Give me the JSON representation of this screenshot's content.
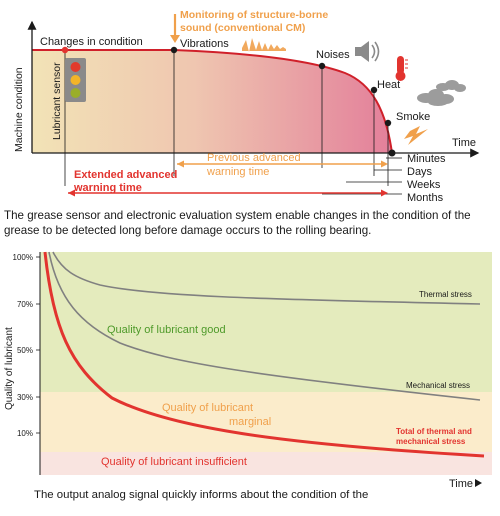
{
  "top_diagram": {
    "y_axis_label": "Machine condition",
    "x_axis_label": "Time",
    "changes_in_condition": "Changes in condition",
    "lubricant_sensor": "Lubricant sensor",
    "monitoring_line1": "Monitoring of structure-borne",
    "monitoring_line2": "sound (conventional CM)",
    "vibrations": "Vibrations",
    "noises": "Noises",
    "heat": "Heat",
    "smoke": "Smoke",
    "time_units": [
      "Minutes",
      "Days",
      "Weeks",
      "Months"
    ],
    "previous_line1": "Previous advanced",
    "previous_line2": "warning time",
    "extended_line1": "Extended advanced",
    "extended_line2": "warning time",
    "colors": {
      "red": "#e2342f",
      "orange": "#f0a04b",
      "curve": "#d0202a"
    }
  },
  "caption_top": "The grease sensor and electronic evaluation system enable changes in the condition of the grease to be detected long before damage occurs to the rolling bearing.",
  "bottom_chart": {
    "y_axis_label": "Quality of lubricant",
    "x_axis_label": "Time",
    "y_ticks": [
      "100%",
      "70%",
      "50%",
      "30%",
      "10%"
    ],
    "zones": {
      "good": "Quality of lubricant good",
      "marginal_line1": "Quality of lubricant",
      "marginal_line2": "marginal",
      "insufficient": "Quality of lubricant insufficient"
    },
    "curves": {
      "thermal": "Thermal stress",
      "mechanical": "Mechanical stress",
      "total_line1": "Total of thermal and",
      "total_line2": "mechanical stress"
    },
    "colors": {
      "good_zone": "#e4ebbd",
      "marginal_zone": "#fbeccb",
      "insufficient_zone": "#f9e4e0",
      "total": "#e2342f",
      "stress": "#808080"
    }
  },
  "caption_bottom": "The output analog signal quickly informs about the condition of the"
}
